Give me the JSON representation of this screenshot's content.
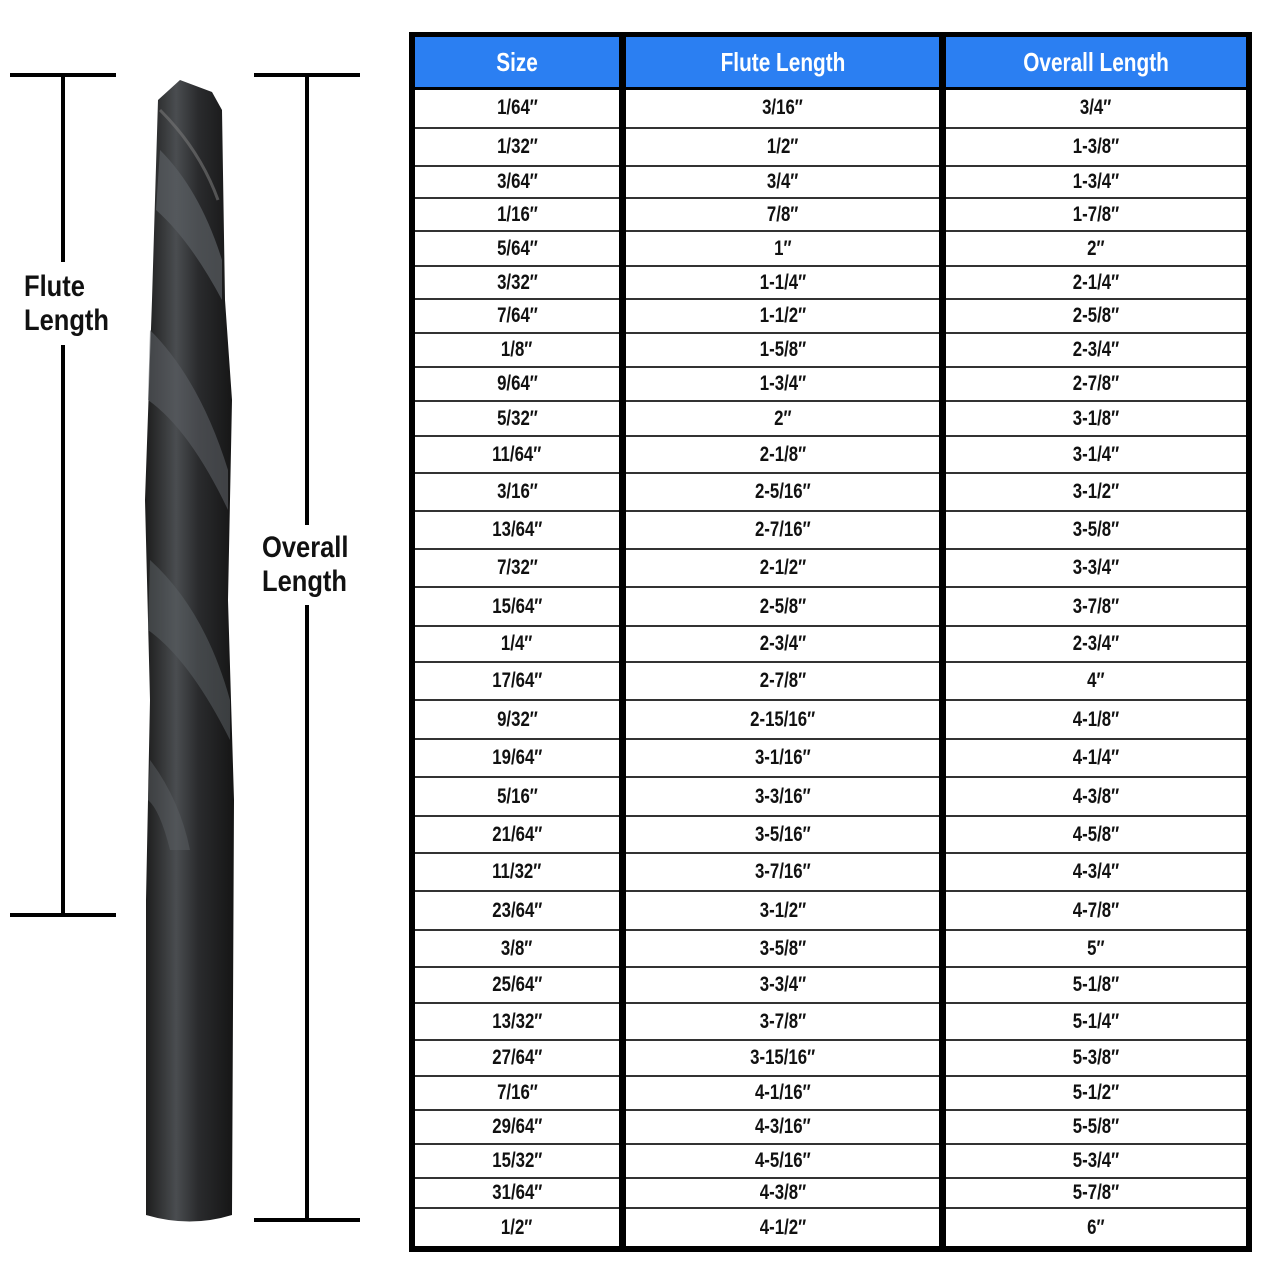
{
  "labels": {
    "flute_length": "Flute Length",
    "overall_length": "Overall Length"
  },
  "colors": {
    "header_bg": "#2b7ff2",
    "header_text": "#ffffff",
    "border": "#000000"
  },
  "table": {
    "headers": [
      "Size",
      "Flute Length",
      "Overall Length"
    ],
    "rows": [
      [
        "1/64″",
        "3/16″",
        "3/4″"
      ],
      [
        "1/32″",
        "1/2″",
        "1-3/8″"
      ],
      [
        "3/64″",
        "3/4″",
        "1-3/4″"
      ],
      [
        "1/16″",
        "7/8″",
        "1-7/8″"
      ],
      [
        "5/64″",
        "1″",
        "2″"
      ],
      [
        "3/32″",
        "1-1/4″",
        "2-1/4″"
      ],
      [
        "7/64″",
        "1-1/2″",
        "2-5/8″"
      ],
      [
        "1/8″",
        "1-5/8″",
        "2-3/4″"
      ],
      [
        "9/64″",
        "1-3/4″",
        "2-7/8″"
      ],
      [
        "5/32″",
        "2″",
        "3-1/8″"
      ],
      [
        "11/64″",
        "2-1/8″",
        "3-1/4″"
      ],
      [
        "3/16″",
        "2-5/16″",
        "3-1/2″"
      ],
      [
        "13/64″",
        "2-7/16″",
        "3-5/8″"
      ],
      [
        "7/32″",
        "2-1/2″",
        "3-3/4″"
      ],
      [
        "15/64″",
        "2-5/8″",
        "3-7/8″"
      ],
      [
        "1/4″",
        "2-3/4″",
        "2-3/4″"
      ],
      [
        "17/64″",
        "2-7/8″",
        "4″"
      ],
      [
        "9/32″",
        "2-15/16″",
        "4-1/8″"
      ],
      [
        "19/64″",
        "3-1/16″",
        "4-1/4″"
      ],
      [
        "5/16″",
        "3-3/16″",
        "4-3/8″"
      ],
      [
        "21/64″",
        "3-5/16″",
        "4-5/8″"
      ],
      [
        "11/32″",
        "3-7/16″",
        "4-3/4″"
      ],
      [
        "23/64″",
        "3-1/2″",
        "4-7/8″"
      ],
      [
        "3/8″",
        "3-5/8″",
        "5″"
      ],
      [
        "25/64″",
        "3-3/4″",
        "5-1/8″"
      ],
      [
        "13/32″",
        "3-7/8″",
        "5-1/4″"
      ],
      [
        "27/64″",
        "3-15/16″",
        "5-3/8″"
      ],
      [
        "7/16″",
        "4-1/16″",
        "5-1/2″"
      ],
      [
        "29/64″",
        "4-3/16″",
        "5-5/8″"
      ],
      [
        "15/32″",
        "4-5/16″",
        "5-3/4″"
      ],
      [
        "31/64″",
        "4-3/8″",
        "5-7/8″"
      ],
      [
        "1/2″",
        "4-1/2″",
        "6″"
      ]
    ]
  }
}
